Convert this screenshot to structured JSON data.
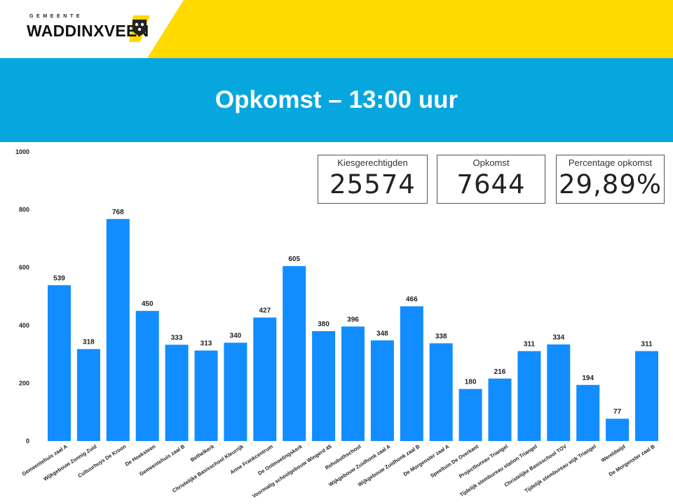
{
  "header": {
    "logo_small": "GEMEENTE",
    "logo_main": "WADDINXVEEN",
    "title": "Opkomst – 13:00 uur"
  },
  "colors": {
    "banner": "#06a6df",
    "accent_yellow": "#ffd900",
    "bar": "#118dff"
  },
  "kpis": [
    {
      "label": "Kiesgerechtigden",
      "value": "25574"
    },
    {
      "label": "Opkomst",
      "value": "7644"
    },
    {
      "label": "Percentage opkomst",
      "value": "29,89%"
    }
  ],
  "chart_data": {
    "type": "bar",
    "title": "",
    "xlabel": "",
    "ylabel": "",
    "ylim": [
      0,
      1000
    ],
    "yticks": [
      0,
      200,
      400,
      600,
      800,
      1000
    ],
    "grid": false,
    "categories": [
      "Gemeentehuis zaal A",
      "Wijkgebouw Zonnig Zuid",
      "Cultuurhuys De Kroon",
      "De Hoeksteen",
      "Gemeentehuis zaal B",
      "Bethelkerk",
      "Christelijke Basisschool Kleurrijk",
      "Anne Frankcentrum",
      "De Ontmoetingskerk",
      "Voormalig schoolgebouw Wingerd 45",
      "Rehobothschool",
      "Wijkgebouw Zuidhonk zaal A",
      "Wijkgebouw Zuidhonk zaal B",
      "De Morgenster zaal A",
      "Speeltuin De Overkant",
      "Projectbureau Triangel",
      "Tijdelijk stembureau station Triangel",
      "Christelijke Basisschool TOV",
      "Tijdelijk stembureau wijk Triangel",
      "Wereldwijd",
      "De Morgenster zaal B"
    ],
    "values": [
      539,
      318,
      768,
      450,
      333,
      313,
      340,
      427,
      605,
      380,
      396,
      348,
      466,
      338,
      180,
      216,
      311,
      334,
      194,
      77,
      311
    ]
  }
}
